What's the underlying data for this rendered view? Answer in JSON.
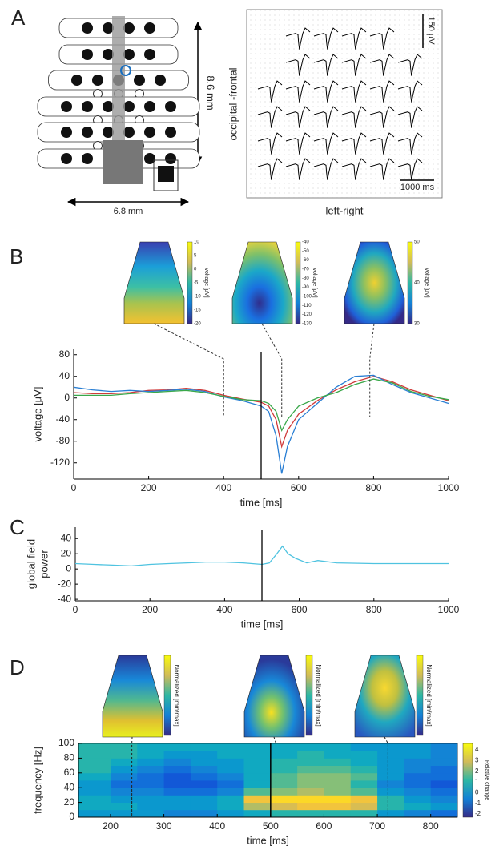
{
  "panel_labels": [
    "A",
    "B",
    "C",
    "D"
  ],
  "chart_data": [
    {
      "type": "trace-grid",
      "ylabel": "occipital -frontal",
      "xlabel": "left-right",
      "scale_y_label": "150 µV",
      "scale_x_label": "1000 ms",
      "height_label": "8.6 mm",
      "width_label": "6.8 mm",
      "x": [
        0,
        200,
        400,
        500,
        520,
        560,
        600,
        700,
        800,
        1000
      ],
      "values": [
        0,
        10,
        20,
        10,
        -40,
        -100,
        -60,
        20,
        60,
        30
      ]
    },
    {
      "type": "line",
      "ylabel": "voltage [µV]",
      "xlabel": "time [ms]",
      "xlim": [
        0,
        1000
      ],
      "ylim": [
        -150,
        90
      ],
      "xticks": [
        0,
        200,
        400,
        600,
        800,
        1000
      ],
      "yticks": [
        80,
        40,
        0,
        -40,
        -80,
        -120
      ],
      "marker_x": 500,
      "x": [
        0,
        50,
        100,
        150,
        200,
        250,
        300,
        350,
        400,
        450,
        500,
        520,
        540,
        555,
        570,
        600,
        650,
        700,
        750,
        800,
        850,
        900,
        950,
        1000
      ],
      "series": [
        {
          "color": "#d03a3a",
          "values": [
            10,
            8,
            8,
            10,
            14,
            15,
            18,
            14,
            5,
            -2,
            -8,
            -15,
            -40,
            -90,
            -60,
            -30,
            -5,
            15,
            30,
            40,
            30,
            15,
            5,
            -5
          ]
        },
        {
          "color": "#2a7fd4",
          "values": [
            20,
            15,
            12,
            14,
            12,
            14,
            16,
            12,
            2,
            -5,
            -15,
            -25,
            -70,
            -140,
            -90,
            -40,
            -10,
            20,
            40,
            42,
            25,
            10,
            0,
            -10
          ]
        },
        {
          "color": "#3aa84a",
          "values": [
            5,
            5,
            5,
            8,
            10,
            12,
            14,
            10,
            3,
            -3,
            -5,
            -10,
            -25,
            -60,
            -40,
            -15,
            0,
            10,
            25,
            35,
            28,
            12,
            3,
            -3
          ]
        }
      ],
      "topomaps": [
        {
          "time": 400,
          "colorbar_label": "voltage [µV]",
          "clim": [
            -20,
            10
          ],
          "colorbar_ticks": [
            10,
            5,
            0,
            -5,
            -10,
            -15,
            -20
          ]
        },
        {
          "time": 555,
          "colorbar_label": "voltage [µV]",
          "clim": [
            -130,
            -40
          ],
          "colorbar_ticks": [
            -40,
            -50,
            -60,
            -70,
            -80,
            -90,
            -100,
            -110,
            -120,
            -130
          ]
        },
        {
          "time": 790,
          "colorbar_label": "voltage [µV]",
          "clim": [
            30,
            50
          ],
          "colorbar_ticks": [
            50,
            40,
            30
          ]
        }
      ]
    },
    {
      "type": "line",
      "ylabel": [
        "global field",
        "power"
      ],
      "xlabel": "time [ms]",
      "xlim": [
        0,
        1000
      ],
      "ylim": [
        -42,
        55
      ],
      "xticks": [
        0,
        200,
        400,
        600,
        800,
        1000
      ],
      "yticks": [
        40,
        20,
        0,
        -20,
        -40
      ],
      "marker_x": 500,
      "x": [
        0,
        50,
        100,
        150,
        200,
        250,
        300,
        350,
        400,
        450,
        500,
        520,
        540,
        555,
        570,
        590,
        620,
        650,
        700,
        800,
        900,
        1000
      ],
      "series": [
        {
          "color": "#4fc3e0",
          "values": [
            7,
            6,
            5,
            4,
            6,
            7,
            8,
            9,
            9,
            8,
            6,
            8,
            20,
            30,
            20,
            14,
            8,
            11,
            8,
            7,
            7,
            7
          ]
        }
      ]
    },
    {
      "type": "heatmap",
      "ylabel": "frequency [Hz]",
      "xlabel": "time [ms]",
      "colorbar_label": "Relative change",
      "xlim": [
        140,
        850
      ],
      "ylim": [
        0,
        100
      ],
      "xticks": [
        200,
        300,
        400,
        500,
        600,
        700,
        800
      ],
      "yticks": [
        0,
        20,
        40,
        60,
        80,
        100
      ],
      "zlim": [
        -2.3,
        4.6
      ],
      "colorbar_ticks": [
        4,
        3,
        2,
        1,
        0,
        -1,
        -2
      ],
      "colormap": [
        "#352a87",
        "#0f5cdd",
        "#1481d6",
        "#06a4ca",
        "#2eb7a4",
        "#87bf77",
        "#d1bb59",
        "#fec832",
        "#f9fb0e"
      ],
      "marker_x": 500,
      "x_edges": [
        140,
        200,
        250,
        300,
        350,
        400,
        450,
        500,
        550,
        600,
        650,
        700,
        750,
        800,
        850
      ],
      "y_edges": [
        0,
        10,
        20,
        30,
        40,
        50,
        60,
        70,
        80,
        90,
        100
      ],
      "z": [
        [
          0,
          0,
          0,
          -0.5,
          -0.5,
          0,
          0.5,
          1,
          1,
          1,
          1,
          0,
          -0.5,
          -1
        ],
        [
          0.5,
          0.5,
          0,
          0,
          0,
          0.5,
          2.5,
          3,
          3.5,
          3.5,
          3,
          1,
          0.5,
          0
        ],
        [
          0.5,
          0,
          0,
          0,
          0,
          0.5,
          3.5,
          4,
          4,
          4,
          3.5,
          1,
          0,
          -0.5
        ],
        [
          0,
          -0.5,
          -0.5,
          -1,
          -1,
          -0.5,
          1.5,
          2,
          2.5,
          2,
          1.5,
          0,
          -0.5,
          -1
        ],
        [
          0,
          -1,
          -1,
          -1.5,
          -1.5,
          -1,
          0.5,
          1.5,
          2,
          2,
          1,
          -0.5,
          -1,
          -1.5
        ],
        [
          0.5,
          -0.5,
          -1,
          -1.5,
          -1,
          -0.5,
          0.5,
          1.5,
          2,
          2,
          1.5,
          0,
          -1,
          -1
        ],
        [
          1,
          0,
          -0.5,
          -1,
          -0.5,
          0,
          0.5,
          1,
          1.5,
          1.5,
          1,
          0,
          -0.5,
          -1
        ],
        [
          1,
          0.5,
          0,
          -0.5,
          0,
          0,
          0.5,
          1,
          1,
          1,
          0.5,
          0,
          -0.5,
          -0.5
        ],
        [
          1,
          1,
          0.5,
          0,
          0,
          0.5,
          0.5,
          0.5,
          1,
          0.5,
          0.5,
          0,
          0,
          -0.5
        ],
        [
          1,
          1,
          0.5,
          0.5,
          0.5,
          0.5,
          0.5,
          0.5,
          0.5,
          0.5,
          0,
          0,
          0,
          -0.5
        ]
      ],
      "topomaps": [
        {
          "time": 240,
          "colorbar_label": "Normalized [min/max]"
        },
        {
          "time": 510,
          "colorbar_label": "Normalized [min/max]"
        },
        {
          "time": 720,
          "colorbar_label": "Normalized [min/max]"
        }
      ]
    }
  ]
}
